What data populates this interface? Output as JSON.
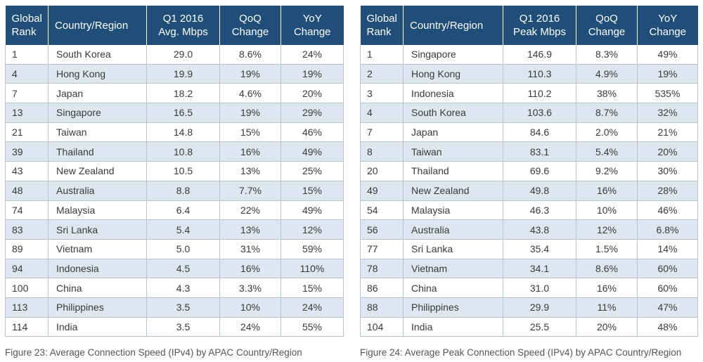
{
  "chart_data": [
    {
      "type": "table",
      "columns": [
        "Global Rank",
        "Country/Region",
        "Q1 2016 Avg. Mbps",
        "QoQ Change",
        "YoY Change"
      ],
      "rows": [
        [
          "1",
          "South Korea",
          "29.0",
          "8.6%",
          "24%"
        ],
        [
          "4",
          "Hong Kong",
          "19.9",
          "19%",
          "19%"
        ],
        [
          "7",
          "Japan",
          "18.2",
          "4.6%",
          "20%"
        ],
        [
          "13",
          "Singapore",
          "16.5",
          "19%",
          "29%"
        ],
        [
          "21",
          "Taiwan",
          "14.8",
          "15%",
          "46%"
        ],
        [
          "39",
          "Thailand",
          "10.8",
          "16%",
          "49%"
        ],
        [
          "43",
          "New Zealand",
          "10.5",
          "13%",
          "25%"
        ],
        [
          "48",
          "Australia",
          "8.8",
          "7.7%",
          "15%"
        ],
        [
          "74",
          "Malaysia",
          "6.4",
          "22%",
          "49%"
        ],
        [
          "83",
          "Sri Lanka",
          "5.4",
          "13%",
          "12%"
        ],
        [
          "89",
          "Vietnam",
          "5.0",
          "31%",
          "59%"
        ],
        [
          "94",
          "Indonesia",
          "4.5",
          "16%",
          "110%"
        ],
        [
          "100",
          "China",
          "4.3",
          "3.3%",
          "15%"
        ],
        [
          "113",
          "Philippines",
          "3.5",
          "10%",
          "24%"
        ],
        [
          "114",
          "India",
          "3.5",
          "24%",
          "55%"
        ]
      ],
      "caption": "Figure 23: Average Connection Speed (IPv4) by APAC Country/Region"
    },
    {
      "type": "table",
      "columns": [
        "Global Rank",
        "Country/Region",
        "Q1 2016 Peak Mbps",
        "QoQ Change",
        "YoY Change"
      ],
      "rows": [
        [
          "1",
          "Singapore",
          "146.9",
          "8.3%",
          "49%"
        ],
        [
          "2",
          "Hong Kong",
          "110.3",
          "4.9%",
          "19%"
        ],
        [
          "3",
          "Indonesia",
          "110.2",
          "38%",
          "535%"
        ],
        [
          "4",
          "South Korea",
          "103.6",
          "8.7%",
          "32%"
        ],
        [
          "7",
          "Japan",
          "84.6",
          "2.0%",
          "21%"
        ],
        [
          "8",
          "Taiwan",
          "83.1",
          "5.4%",
          "20%"
        ],
        [
          "20",
          "Thailand",
          "69.6",
          "9.2%",
          "30%"
        ],
        [
          "49",
          "New Zealand",
          "49.8",
          "16%",
          "28%"
        ],
        [
          "54",
          "Malaysia",
          "46.3",
          "10%",
          "46%"
        ],
        [
          "56",
          "Australia",
          "43.8",
          "12%",
          "6.8%"
        ],
        [
          "77",
          "Sri Lanka",
          "35.4",
          "1.5%",
          "14%"
        ],
        [
          "78",
          "Vietnam",
          "34.1",
          "8.6%",
          "60%"
        ],
        [
          "86",
          "China",
          "31.0",
          "16%",
          "60%"
        ],
        [
          "88",
          "Philippines",
          "29.9",
          "11%",
          "47%"
        ],
        [
          "104",
          "India",
          "25.5",
          "20%",
          "48%"
        ]
      ],
      "caption": "Figure 24: Average Peak Connection Speed (IPv4) by APAC Country/Region"
    }
  ],
  "colors": {
    "header_bg": "#1f4e78",
    "header_text": "#ffffff",
    "stripe_bg": "#dde7f2",
    "border": "#b9c3cd"
  }
}
